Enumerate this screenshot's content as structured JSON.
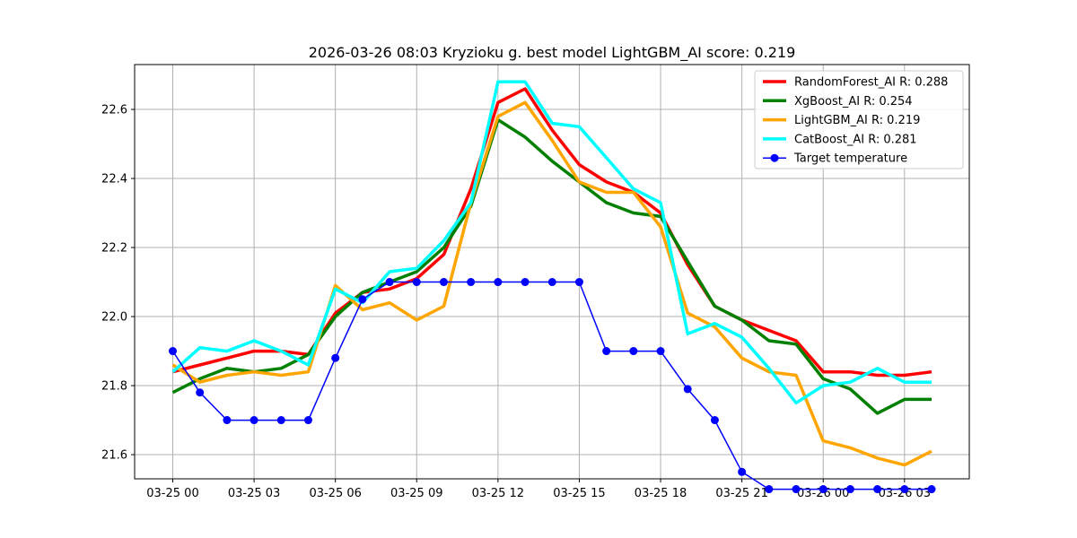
{
  "chart_data": {
    "type": "line",
    "title": "2026-03-26 08:03 Kryzioku g. best model LightGBM_AI score: 0.219",
    "xlabel": "",
    "ylabel": "",
    "x": [
      "03-25 00:00",
      "03-25 01:00",
      "03-25 02:00",
      "03-25 03:00",
      "03-25 04:00",
      "03-25 05:00",
      "03-25 06:00",
      "03-25 07:00",
      "03-25 08:00",
      "03-25 09:00",
      "03-25 10:00",
      "03-25 11:00",
      "03-25 12:00",
      "03-25 13:00",
      "03-25 14:00",
      "03-25 15:00",
      "03-25 16:00",
      "03-25 17:00",
      "03-25 18:00",
      "03-25 19:00",
      "03-25 20:00",
      "03-25 21:00",
      "03-25 22:00",
      "03-25 23:00",
      "03-26 00:00",
      "03-26 01:00",
      "03-26 02:00",
      "03-26 03:00",
      "03-26 04:00"
    ],
    "xticks": [
      "03-25 00",
      "03-25 03",
      "03-25 06",
      "03-25 09",
      "03-25 12",
      "03-25 15",
      "03-25 18",
      "03-25 21",
      "03-26 00",
      "03-26 03"
    ],
    "yticks": [
      "21.6",
      "21.8",
      "22.0",
      "22.2",
      "22.4",
      "22.6"
    ],
    "ylim": [
      21.53,
      22.73
    ],
    "grid": true,
    "legend_position": "top-right",
    "series": [
      {
        "name": "RandomForest_AI R: 0.288",
        "color": "#ff0000",
        "marker": "none",
        "values": [
          21.84,
          21.86,
          21.88,
          21.9,
          21.9,
          21.89,
          22.01,
          22.07,
          22.08,
          22.11,
          22.18,
          22.37,
          22.62,
          22.66,
          22.54,
          22.44,
          22.39,
          22.36,
          22.3,
          22.15,
          22.03,
          21.99,
          21.96,
          21.93,
          21.84,
          21.84,
          21.83,
          21.83,
          21.84
        ]
      },
      {
        "name": "XgBoost_AI R: 0.254",
        "color": "#008000",
        "marker": "none",
        "values": [
          21.78,
          21.82,
          21.85,
          21.84,
          21.85,
          21.89,
          22.0,
          22.07,
          22.1,
          22.13,
          22.2,
          22.32,
          22.57,
          22.52,
          22.45,
          22.39,
          22.33,
          22.3,
          22.29,
          22.16,
          22.03,
          21.99,
          21.93,
          21.92,
          21.82,
          21.79,
          21.72,
          21.76,
          21.76
        ]
      },
      {
        "name": "LightGBM_AI R: 0.219",
        "color": "#ffa500",
        "marker": "none",
        "values": [
          21.86,
          21.81,
          21.83,
          21.84,
          21.83,
          21.84,
          22.09,
          22.02,
          22.04,
          21.99,
          22.03,
          22.33,
          22.58,
          22.62,
          22.51,
          22.39,
          22.36,
          22.36,
          22.26,
          22.01,
          21.97,
          21.88,
          21.84,
          21.83,
          21.64,
          21.62,
          21.59,
          21.57,
          21.61
        ]
      },
      {
        "name": "CatBoost_AI R: 0.281",
        "color": "#00ffff",
        "marker": "none",
        "values": [
          21.84,
          21.91,
          21.9,
          21.93,
          21.9,
          21.86,
          22.08,
          22.04,
          22.13,
          22.14,
          22.22,
          22.33,
          22.68,
          22.68,
          22.56,
          22.55,
          22.46,
          22.37,
          22.33,
          21.95,
          21.98,
          21.94,
          21.85,
          21.75,
          21.8,
          21.81,
          21.85,
          21.81,
          21.81
        ]
      },
      {
        "name": "Target temperature",
        "color": "#0000ff",
        "marker": "circle",
        "values": [
          21.9,
          21.78,
          21.7,
          21.7,
          21.7,
          21.7,
          21.88,
          22.05,
          22.1,
          22.1,
          22.1,
          22.1,
          22.1,
          22.1,
          22.1,
          22.1,
          21.9,
          21.9,
          21.9,
          21.79,
          21.7,
          21.55,
          21.5,
          21.5,
          21.5,
          21.5,
          21.5,
          21.5,
          21.5
        ]
      }
    ]
  }
}
